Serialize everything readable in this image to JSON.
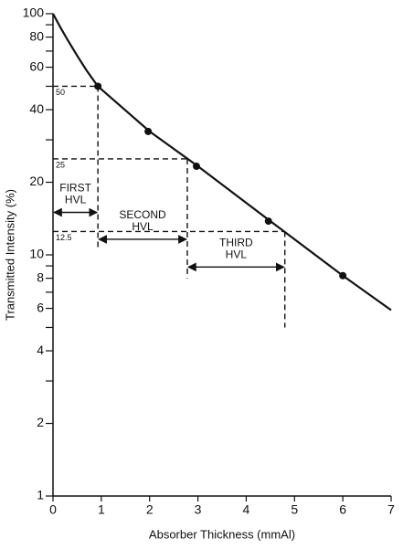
{
  "chart_data": {
    "type": "line",
    "y_label": "Transmitted Intensity (%)",
    "x_label": "Absorber Thickness (mmAl)",
    "xlim": [
      0,
      7
    ],
    "xticks": [
      0,
      1,
      2,
      3,
      4,
      5,
      6,
      7
    ],
    "ylim": [
      1,
      100
    ],
    "log_y": true,
    "yticks": [
      1,
      2,
      4,
      6,
      8,
      10,
      20,
      40,
      60,
      80,
      100
    ],
    "minor_yticks": [
      3,
      5,
      7,
      9,
      30,
      50,
      70,
      90
    ],
    "color": "#111111",
    "line": {
      "x": [
        0,
        0.15,
        0.3,
        0.5,
        0.7,
        0.93,
        2,
        3,
        4.5,
        6,
        7
      ],
      "y": [
        100,
        88,
        78,
        67,
        58,
        50,
        32.5,
        23.3,
        13.8,
        8.2,
        5.9
      ]
    },
    "points": {
      "x": [
        0.93,
        1.97,
        2.97,
        4.46,
        6
      ],
      "y": [
        50,
        32.5,
        23.3,
        13.8,
        8.2
      ]
    },
    "hvl": [
      {
        "level": 50,
        "x": 0.93,
        "drop_to": 10.6,
        "label": [
          "FIRST",
          "HVL"
        ],
        "arrow_from": 0,
        "arrow_to": 0.93,
        "arrow_y": 15
      },
      {
        "level": 25,
        "x": 2.78,
        "drop_to": 8,
        "label": [
          "SECOND",
          "HVL"
        ],
        "arrow_from": 0.93,
        "arrow_to": 2.78,
        "arrow_y": 11.6
      },
      {
        "level": 12.5,
        "x": 4.8,
        "drop_to": 5,
        "label": [
          "THIRD",
          "HVL"
        ],
        "arrow_from": 2.78,
        "arrow_to": 4.8,
        "arrow_y": 8.9
      }
    ]
  }
}
